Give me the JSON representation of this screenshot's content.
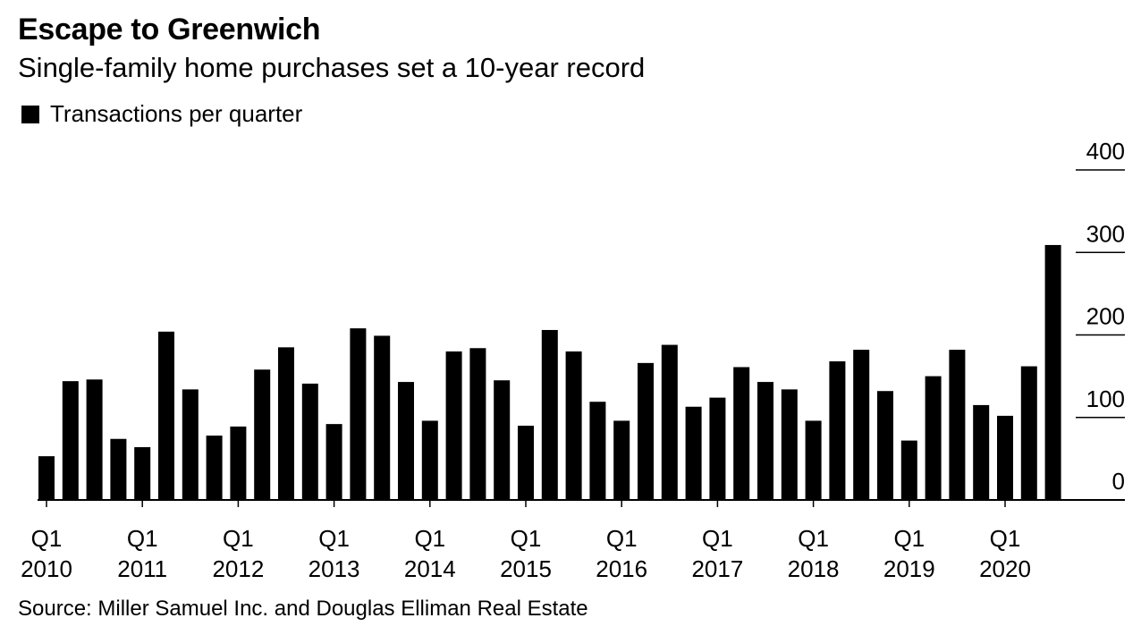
{
  "title": "Escape to Greenwich",
  "subtitle": "Single-family home purchases set a 10-year record",
  "legend": {
    "label": "Transactions per quarter",
    "color": "#000000"
  },
  "source": "Source: Miller Samuel Inc. and Douglas Elliman Real Estate",
  "chart_data": {
    "type": "bar",
    "title": "Escape to Greenwich",
    "subtitle": "Single-family home purchases set a 10-year record",
    "xlabel": "",
    "ylabel": "",
    "ylim": [
      0,
      400
    ],
    "yticks": [
      0,
      100,
      200,
      300,
      400
    ],
    "grid": false,
    "legend_position": "top-left",
    "categories": [
      "Q1 2010",
      "Q2 2010",
      "Q3 2010",
      "Q4 2010",
      "Q1 2011",
      "Q2 2011",
      "Q3 2011",
      "Q4 2011",
      "Q1 2012",
      "Q2 2012",
      "Q3 2012",
      "Q4 2012",
      "Q1 2013",
      "Q2 2013",
      "Q3 2013",
      "Q4 2013",
      "Q1 2014",
      "Q2 2014",
      "Q3 2014",
      "Q4 2014",
      "Q1 2015",
      "Q2 2015",
      "Q3 2015",
      "Q4 2015",
      "Q1 2016",
      "Q2 2016",
      "Q3 2016",
      "Q4 2016",
      "Q1 2017",
      "Q2 2017",
      "Q3 2017",
      "Q4 2017",
      "Q1 2018",
      "Q2 2018",
      "Q3 2018",
      "Q4 2018",
      "Q1 2019",
      "Q2 2019",
      "Q3 2019",
      "Q4 2019",
      "Q1 2020",
      "Q2 2020",
      "Q3 2020"
    ],
    "series": [
      {
        "name": "Transactions per quarter",
        "color": "#000000",
        "values": [
          53,
          144,
          146,
          74,
          64,
          204,
          134,
          78,
          89,
          158,
          185,
          141,
          92,
          208,
          199,
          143,
          96,
          180,
          184,
          145,
          90,
          206,
          180,
          119,
          96,
          166,
          188,
          113,
          124,
          161,
          143,
          134,
          96,
          168,
          182,
          132,
          72,
          150,
          182,
          115,
          102,
          162,
          309
        ]
      }
    ],
    "x_tick_labels": [
      {
        "index": 0,
        "line1": "Q1",
        "line2": "2010"
      },
      {
        "index": 4,
        "line1": "Q1",
        "line2": "2011"
      },
      {
        "index": 8,
        "line1": "Q1",
        "line2": "2012"
      },
      {
        "index": 12,
        "line1": "Q1",
        "line2": "2013"
      },
      {
        "index": 16,
        "line1": "Q1",
        "line2": "2014"
      },
      {
        "index": 20,
        "line1": "Q1",
        "line2": "2015"
      },
      {
        "index": 24,
        "line1": "Q1",
        "line2": "2016"
      },
      {
        "index": 28,
        "line1": "Q1",
        "line2": "2017"
      },
      {
        "index": 32,
        "line1": "Q1",
        "line2": "2018"
      },
      {
        "index": 36,
        "line1": "Q1",
        "line2": "2019"
      },
      {
        "index": 40,
        "line1": "Q1",
        "line2": "2020"
      }
    ]
  }
}
